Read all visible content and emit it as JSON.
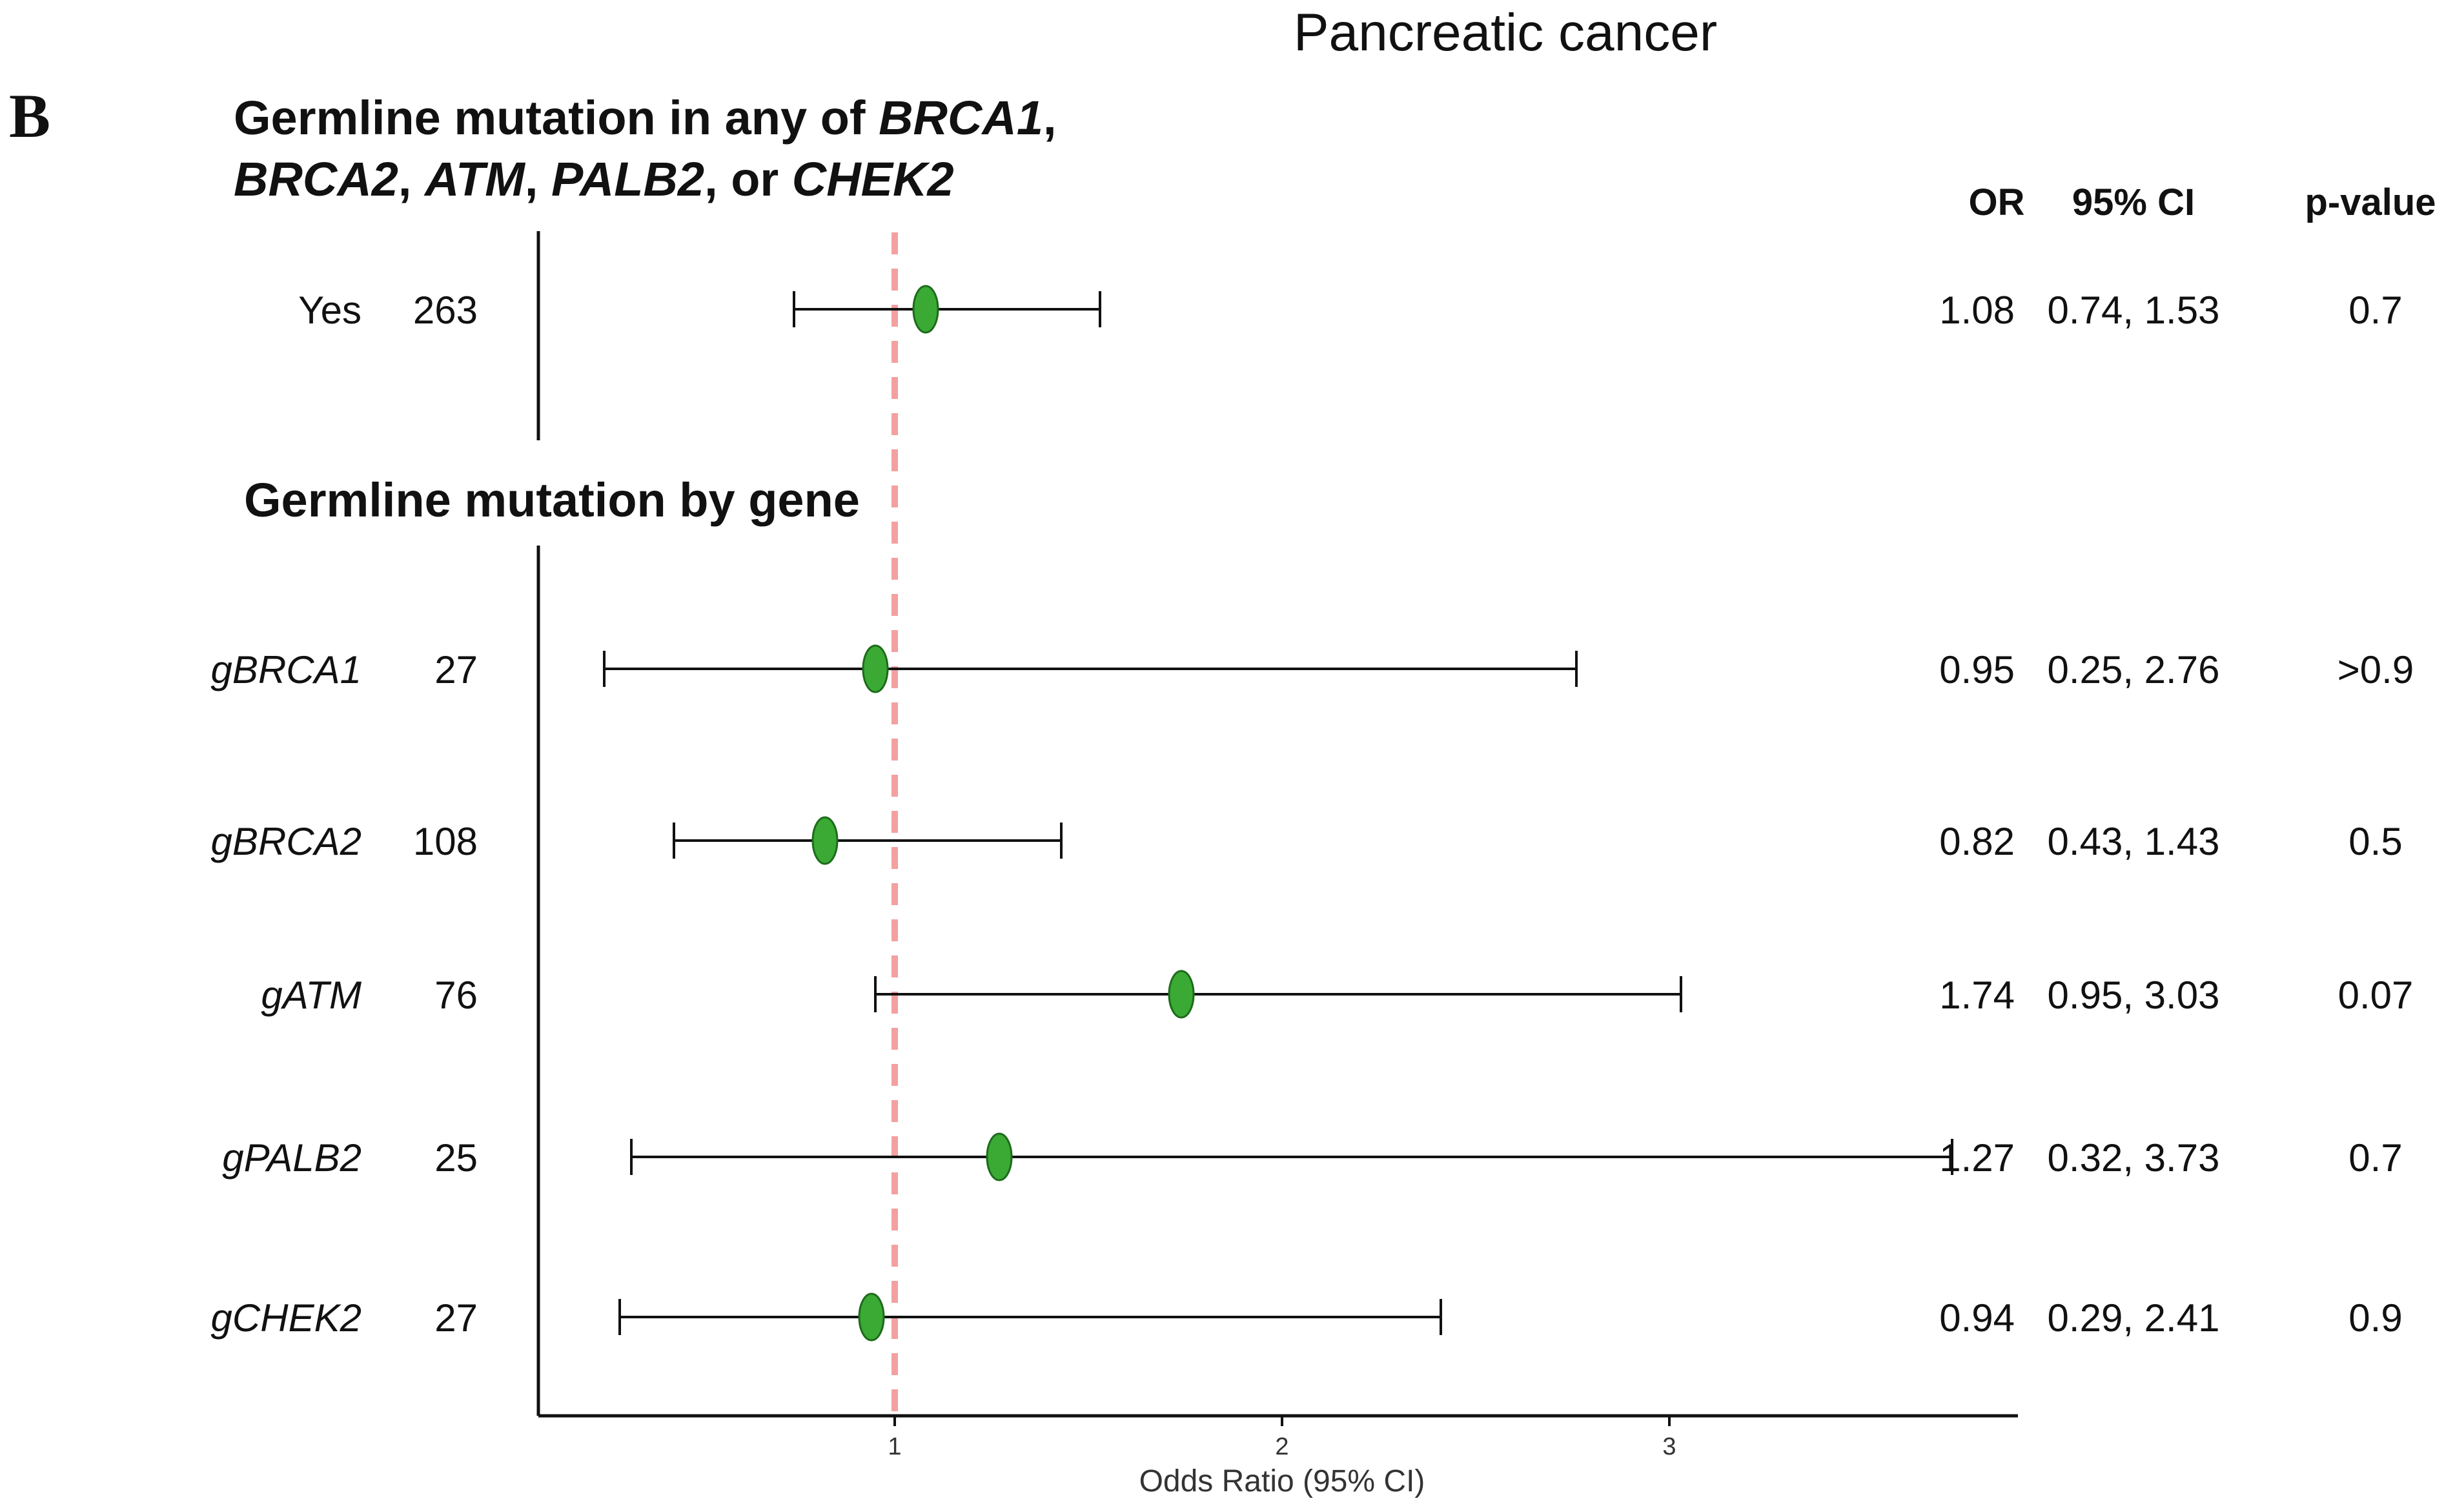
{
  "chart_data": {
    "type": "forest",
    "title": "Pancreatic cancer",
    "panel_label": "B",
    "xlabel": "Odds Ratio (95% CI)",
    "x_ticks": [
      "1",
      "2",
      "3"
    ],
    "xlim": [
      0.08,
      3.9
    ],
    "reference_line": 1,
    "grid": false,
    "marker_color": "#3aaa35",
    "reference_color": "#f4a0a0",
    "column_headers": {
      "or": "OR",
      "ci": "95% CI",
      "p": "p-value"
    },
    "groups": [
      {
        "header": [
          "Germline mutation in any of ",
          {
            "i": "BRCA1"
          },
          ",|",
          {
            "i": "BRCA2"
          },
          ", ",
          {
            "i": "ATM"
          },
          ", ",
          {
            "i": "PALB2"
          },
          ", or ",
          {
            "i": "CHEK2"
          }
        ],
        "rows": [
          {
            "label_prefix": "",
            "label_italic": "Yes",
            "italic": false,
            "n": "263",
            "or": 1.08,
            "lo": 0.74,
            "hi": 1.53,
            "or_text": "1.08",
            "ci_text": "0.74, 1.53",
            "p_text": "0.7"
          }
        ]
      },
      {
        "header": [
          "Germline mutation by gene"
        ],
        "rows": [
          {
            "label_prefix": "g",
            "label_italic": "BRCA1",
            "italic": true,
            "n": "27",
            "or": 0.95,
            "lo": 0.25,
            "hi": 2.76,
            "or_text": "0.95",
            "ci_text": "0.25, 2.76",
            "p_text": ">0.9"
          },
          {
            "label_prefix": "g",
            "label_italic": "BRCA2",
            "italic": true,
            "n": "108",
            "or": 0.82,
            "lo": 0.43,
            "hi": 1.43,
            "or_text": "0.82",
            "ci_text": "0.43, 1.43",
            "p_text": "0.5"
          },
          {
            "label_prefix": "g",
            "label_italic": "ATM",
            "italic": true,
            "n": "76",
            "or": 1.74,
            "lo": 0.95,
            "hi": 3.03,
            "or_text": "1.74",
            "ci_text": "0.95, 3.03",
            "p_text": "0.07"
          },
          {
            "label_prefix": "g",
            "label_italic": "PALB2",
            "italic": true,
            "n": "25",
            "or": 1.27,
            "lo": 0.32,
            "hi": 3.73,
            "or_text": "1.27",
            "ci_text": "0.32, 3.73",
            "p_text": "0.7"
          },
          {
            "label_prefix": "g",
            "label_italic": "CHEK2",
            "italic": true,
            "n": "27",
            "or": 0.94,
            "lo": 0.29,
            "hi": 2.41,
            "or_text": "0.94",
            "ci_text": "0.29, 2.41",
            "p_text": "0.9"
          }
        ]
      }
    ]
  }
}
